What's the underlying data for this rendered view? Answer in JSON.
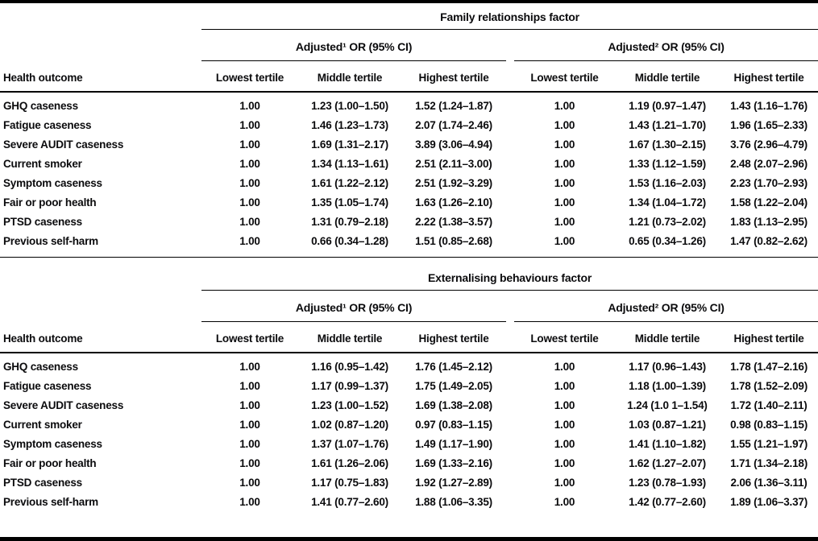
{
  "columns": {
    "health_outcome_label": "Health outcome",
    "tertile_labels": [
      "Lowest tertile",
      "Middle tertile",
      "Highest tertile"
    ]
  },
  "sections": [
    {
      "factor_title": "Family relationships factor",
      "adjusted1_header": "Adjusted¹ OR (95% CI)",
      "adjusted2_header": "Adjusted² OR (95% CI)",
      "rows": [
        [
          "GHQ caseness",
          "1.00",
          "1.23 (1.00–1.50)",
          "1.52 (1.24–1.87)",
          "1.00",
          "1.19 (0.97–1.47)",
          "1.43 (1.16–1.76)"
        ],
        [
          "Fatigue caseness",
          "1.00",
          "1.46 (1.23–1.73)",
          "2.07 (1.74–2.46)",
          "1.00",
          "1.43 (1.21–1.70)",
          "1.96 (1.65–2.33)"
        ],
        [
          "Severe AUDIT caseness",
          "1.00",
          "1.69 (1.31–2.17)",
          "3.89 (3.06–4.94)",
          "1.00",
          "1.67 (1.30–2.15)",
          "3.76 (2.96–4.79)"
        ],
        [
          "Current smoker",
          "1.00",
          "1.34 (1.13–1.61)",
          "2.51 (2.11–3.00)",
          "1.00",
          "1.33 (1.12–1.59)",
          "2.48 (2.07–2.96)"
        ],
        [
          "Symptom caseness",
          "1.00",
          "1.61 (1.22–2.12)",
          "2.51 (1.92–3.29)",
          "1.00",
          "1.53 (1.16–2.03)",
          "2.23 (1.70–2.93)"
        ],
        [
          "Fair or poor health",
          "1.00",
          "1.35 (1.05–1.74)",
          "1.63 (1.26–2.10)",
          "1.00",
          "1.34 (1.04–1.72)",
          "1.58 (1.22–2.04)"
        ],
        [
          "PTSD caseness",
          "1.00",
          "1.31 (0.79–2.18)",
          "2.22 (1.38–3.57)",
          "1.00",
          "1.21 (0.73–2.02)",
          "1.83 (1.13–2.95)"
        ],
        [
          "Previous self-harm",
          "1.00",
          "0.66 (0.34–1.28)",
          "1.51 (0.85–2.68)",
          "1.00",
          "0.65 (0.34–1.26)",
          "1.47 (0.82–2.62)"
        ]
      ]
    },
    {
      "factor_title": "Externalising behaviours factor",
      "adjusted1_header": "Adjusted¹ OR (95% CI)",
      "adjusted2_header": "Adjusted² OR (95% CI)",
      "rows": [
        [
          "GHQ caseness",
          "1.00",
          "1.16 (0.95–1.42)",
          "1.76 (1.45–2.12)",
          "1.00",
          "1.17 (0.96–1.43)",
          "1.78 (1.47–2.16)"
        ],
        [
          "Fatigue caseness",
          "1.00",
          "1.17 (0.99–1.37)",
          "1.75 (1.49–2.05)",
          "1.00",
          "1.18 (1.00–1.39)",
          "1.78 (1.52–2.09)"
        ],
        [
          "Severe AUDIT caseness",
          "1.00",
          "1.23 (1.00–1.52)",
          "1.69 (1.38–2.08)",
          "1.00",
          "1.24 (1.0 1–1.54)",
          "1.72 (1.40–2.11)"
        ],
        [
          "Current smoker",
          "1.00",
          "1.02 (0.87–1.20)",
          "0.97 (0.83–1.15)",
          "1.00",
          "1.03 (0.87–1.21)",
          "0.98 (0.83–1.15)"
        ],
        [
          "Symptom caseness",
          "1.00",
          "1.37 (1.07–1.76)",
          "1.49 (1.17–1.90)",
          "1.00",
          "1.41 (1.10–1.82)",
          "1.55 (1.21–1.97)"
        ],
        [
          "Fair or poor health",
          "1.00",
          "1.61 (1.26–2.06)",
          "1.69 (1.33–2.16)",
          "1.00",
          "1.62 (1.27–2.07)",
          "1.71 (1.34–2.18)"
        ],
        [
          "PTSD caseness",
          "1.00",
          "1.17 (0.75–1.83)",
          "1.92 (1.27–2.89)",
          "1.00",
          "1.23 (0.78–1.93)",
          "2.06 (1.36–3.11)"
        ],
        [
          "Previous self-harm",
          "1.00",
          "1.41 (0.77–2.60)",
          "1.88 (1.06–3.35)",
          "1.00",
          "1.42 (0.77–2.60)",
          "1.89 (1.06–3.37)"
        ]
      ]
    }
  ]
}
